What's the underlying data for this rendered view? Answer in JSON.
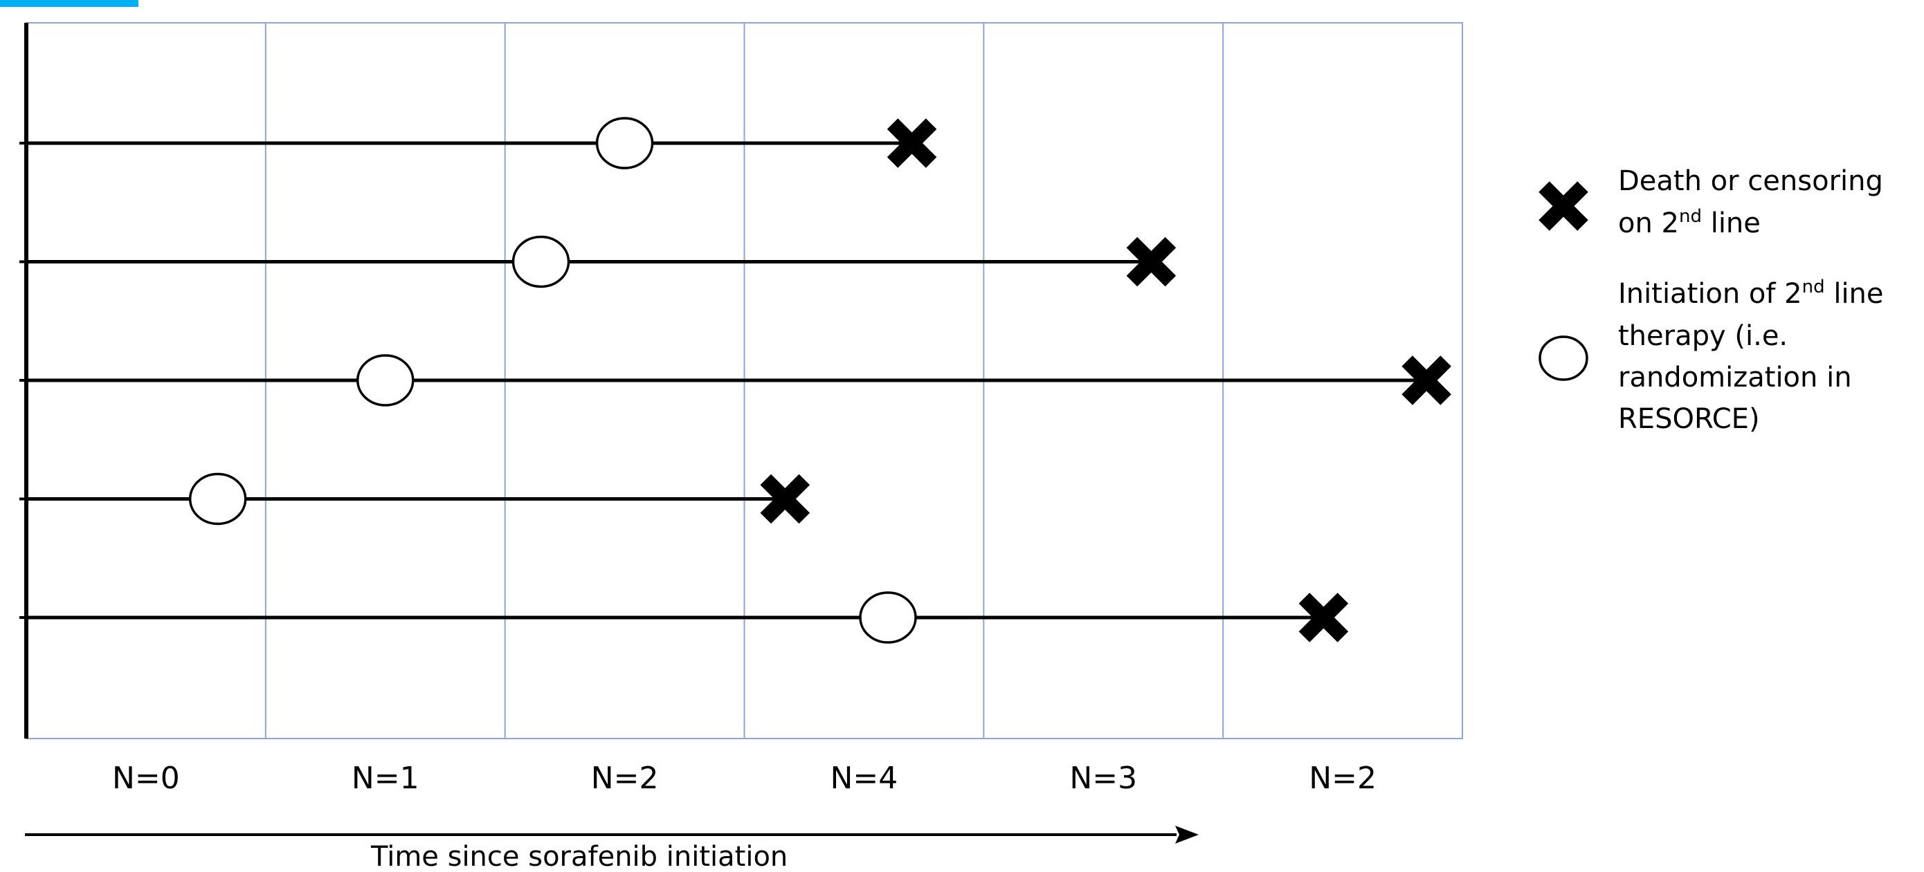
{
  "heading": {
    "title": "",
    "prefix_color": "#00b0f0"
  },
  "columns": {
    "counts": [
      "N=0",
      "N=1",
      "N=2",
      "N=4",
      "N=3",
      "N=2"
    ]
  },
  "patients": [
    {
      "start_interval": 0,
      "initiation_interval": 2.5,
      "end_interval": 3.7
    },
    {
      "start_interval": 0,
      "initiation_interval": 2.15,
      "end_interval": 4.7
    },
    {
      "start_interval": 0,
      "initiation_interval": 1.5,
      "end_interval": 5.85
    },
    {
      "start_interval": 0,
      "initiation_interval": 0.8,
      "end_interval": 3.17
    },
    {
      "start_interval": 0,
      "initiation_interval": 3.6,
      "end_interval": 5.42
    }
  ],
  "axis": {
    "label": "Time since sorafenib initiation"
  },
  "legend": {
    "death": {
      "line1": "Death or censoring",
      "line2_pre": "on 2",
      "sup": "nd",
      "line2_post": " line"
    },
    "initiation": {
      "line1_pre": "Initiation of 2",
      "sup": "nd",
      "line1_post": " line",
      "line2": "therapy (i.e.",
      "line3": "randomization in",
      "line4": "RESORCE)"
    }
  },
  "colors": {
    "grid_border": "#8ea6cf",
    "line": "#000000",
    "marker": "#000000",
    "accent": "#00b0f0"
  }
}
